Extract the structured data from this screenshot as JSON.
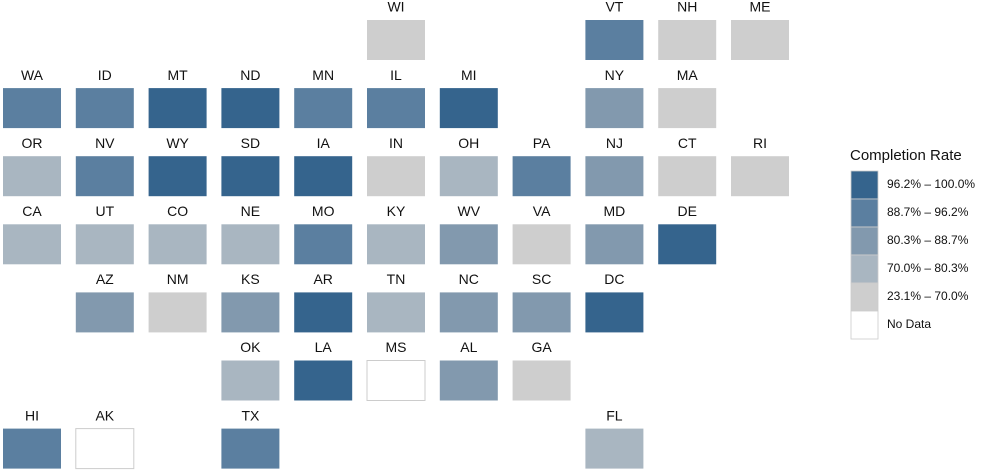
{
  "legend": {
    "title": "Completion Rate",
    "items": [
      {
        "label": "96.2% – 100.0%",
        "color": "#35648d"
      },
      {
        "label": "88.7% – 96.2%",
        "color": "#5b7fa0"
      },
      {
        "label": "80.3% – 88.7%",
        "color": "#8299ae"
      },
      {
        "label": "70.0% – 80.3%",
        "color": "#a9b6c1"
      },
      {
        "label": "23.1% – 70.0%",
        "color": "#cecece"
      },
      {
        "label": "No Data",
        "color": "#ffffff"
      }
    ]
  },
  "tiles": [
    {
      "label": "WI",
      "rate": "23.1% – 70.0%"
    },
    {
      "label": "VT",
      "rate": "88.7% – 96.2%"
    },
    {
      "label": "NH",
      "rate": "23.1% – 70.0%"
    },
    {
      "label": "ME",
      "rate": "23.1% – 70.0%"
    },
    {
      "label": "WA",
      "rate": "88.7% – 96.2%"
    },
    {
      "label": "ID",
      "rate": "88.7% – 96.2%"
    },
    {
      "label": "MT",
      "rate": "96.2% – 100.0%"
    },
    {
      "label": "ND",
      "rate": "96.2% – 100.0%"
    },
    {
      "label": "MN",
      "rate": "88.7% – 96.2%"
    },
    {
      "label": "IL",
      "rate": "88.7% – 96.2%"
    },
    {
      "label": "MI",
      "rate": "96.2% – 100.0%"
    },
    {
      "label": "NY",
      "rate": "80.3% – 88.7%"
    },
    {
      "label": "MA",
      "rate": "23.1% – 70.0%"
    },
    {
      "label": "OR",
      "rate": "70.0% – 80.3%"
    },
    {
      "label": "NV",
      "rate": "88.7% – 96.2%"
    },
    {
      "label": "WY",
      "rate": "96.2% – 100.0%"
    },
    {
      "label": "SD",
      "rate": "96.2% – 100.0%"
    },
    {
      "label": "IA",
      "rate": "96.2% – 100.0%"
    },
    {
      "label": "IN",
      "rate": "23.1% – 70.0%"
    },
    {
      "label": "OH",
      "rate": "70.0% – 80.3%"
    },
    {
      "label": "PA",
      "rate": "88.7% – 96.2%"
    },
    {
      "label": "NJ",
      "rate": "80.3% – 88.7%"
    },
    {
      "label": "CT",
      "rate": "23.1% – 70.0%"
    },
    {
      "label": "RI",
      "rate": "23.1% – 70.0%"
    },
    {
      "label": "CA",
      "rate": "70.0% – 80.3%"
    },
    {
      "label": "UT",
      "rate": "70.0% – 80.3%"
    },
    {
      "label": "CO",
      "rate": "70.0% – 80.3%"
    },
    {
      "label": "NE",
      "rate": "70.0% – 80.3%"
    },
    {
      "label": "MO",
      "rate": "88.7% – 96.2%"
    },
    {
      "label": "KY",
      "rate": "70.0% – 80.3%"
    },
    {
      "label": "WV",
      "rate": "80.3% – 88.7%"
    },
    {
      "label": "VA",
      "rate": "23.1% – 70.0%"
    },
    {
      "label": "MD",
      "rate": "80.3% – 88.7%"
    },
    {
      "label": "DE",
      "rate": "96.2% – 100.0%"
    },
    {
      "label": "AZ",
      "rate": "80.3% – 88.7%"
    },
    {
      "label": "NM",
      "rate": "23.1% – 70.0%"
    },
    {
      "label": "KS",
      "rate": "80.3% – 88.7%"
    },
    {
      "label": "AR",
      "rate": "96.2% – 100.0%"
    },
    {
      "label": "TN",
      "rate": "70.0% – 80.3%"
    },
    {
      "label": "NC",
      "rate": "80.3% – 88.7%"
    },
    {
      "label": "SC",
      "rate": "80.3% – 88.7%"
    },
    {
      "label": "DC",
      "rate": "96.2% – 100.0%"
    },
    {
      "label": "OK",
      "rate": "70.0% – 80.3%"
    },
    {
      "label": "LA",
      "rate": "96.2% – 100.0%"
    },
    {
      "label": "MS",
      "rate": "No Data"
    },
    {
      "label": "AL",
      "rate": "80.3% – 88.7%"
    },
    {
      "label": "GA",
      "rate": "23.1% – 70.0%"
    },
    {
      "label": "HI",
      "rate": "88.7% – 96.2%"
    },
    {
      "label": "AK",
      "rate": "No Data"
    },
    {
      "label": "TX",
      "rate": "88.7% – 96.2%"
    },
    {
      "label": "FL",
      "rate": "70.0% – 80.3%"
    }
  ]
}
